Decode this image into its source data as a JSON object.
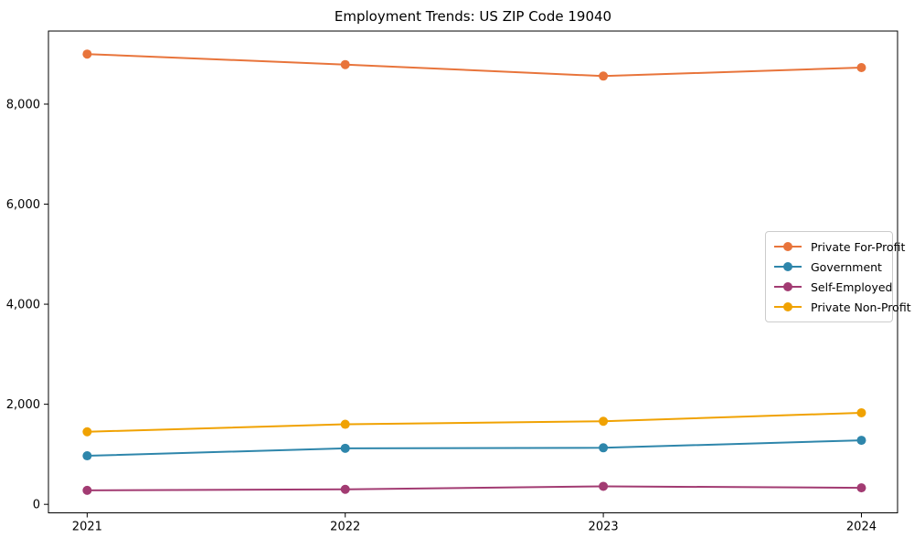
{
  "figure": {
    "background": "#ffffff",
    "axis_color": "#000000",
    "legend_border_color": "#cccccc"
  },
  "chart_data": {
    "type": "line",
    "title": "Employment Trends: US ZIP Code 19040",
    "xlabel": "",
    "ylabel": "",
    "x": [
      2021,
      2022,
      2023,
      2024
    ],
    "xtick_labels": [
      "2021",
      "2022",
      "2023",
      "2024"
    ],
    "ytick_values": [
      0,
      2000,
      4000,
      6000,
      8000
    ],
    "ytick_labels": [
      "0",
      "2,000",
      "4,000",
      "6,000",
      "8,000"
    ],
    "xlim": [
      2020.85,
      2024.14
    ],
    "ylim": [
      -170,
      9460
    ],
    "grid": false,
    "legend_position": "center-right",
    "marker": "circle",
    "line_width": 2,
    "marker_radius": 5,
    "series": [
      {
        "name": "Private For-Profit",
        "color": "#E8743B",
        "values": [
          9000,
          8790,
          8560,
          8730
        ]
      },
      {
        "name": "Government",
        "color": "#2E86AB",
        "values": [
          970,
          1120,
          1130,
          1280
        ]
      },
      {
        "name": "Self-Employed",
        "color": "#A23B72",
        "values": [
          280,
          300,
          360,
          330
        ]
      },
      {
        "name": "Private Non-Profit",
        "color": "#F0A202",
        "values": [
          1450,
          1600,
          1660,
          1830
        ]
      }
    ]
  }
}
